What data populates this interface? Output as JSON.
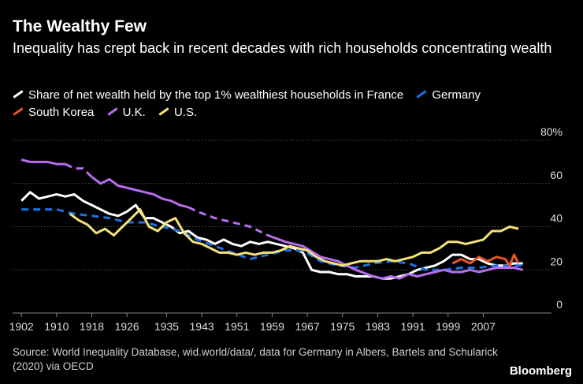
{
  "title": "The Wealthy Few",
  "subtitle": "Inequality has crept back in recent decades with rich households concentrating wealth",
  "source": "Source: World Inequality Database, wid.world/data/, data for Germany in Albers, Bartels and Schularick (2020) via OECD",
  "brand": "Bloomberg",
  "chart_data": {
    "type": "line",
    "title": "The Wealthy Few",
    "xlabel": "",
    "ylabel": "",
    "xlim": [
      1900,
      2020
    ],
    "ylim": [
      0,
      80
    ],
    "y_unit_suffix": "%",
    "grid": true,
    "legend_position": "top",
    "x_ticks": [
      1902,
      1910,
      1918,
      1926,
      1935,
      1943,
      1951,
      1959,
      1967,
      1975,
      1983,
      1991,
      1999,
      2007
    ],
    "y_ticks": [
      0,
      20,
      40,
      60,
      80
    ],
    "y_tick_labels": [
      "0",
      "20",
      "40",
      "60",
      "80%"
    ],
    "series": [
      {
        "name": "Share of net wealth held by the top 1% wealthiest households in France",
        "color": "#ffffff",
        "dash": "solid",
        "x": [
          1902,
          1904,
          1906,
          1908,
          1910,
          1912,
          1914,
          1916,
          1918,
          1920,
          1922,
          1924,
          1926,
          1928,
          1930,
          1932,
          1934,
          1936,
          1938,
          1940,
          1942,
          1944,
          1946,
          1948,
          1950,
          1952,
          1954,
          1956,
          1958,
          1960,
          1962,
          1964,
          1966,
          1968,
          1970,
          1972,
          1974,
          1976,
          1978,
          1980,
          1982,
          1984,
          1986,
          1988,
          1990,
          1992,
          1994,
          1996,
          1998,
          2000,
          2002,
          2004,
          2006,
          2008,
          2010,
          2012,
          2014,
          2016
        ],
        "values": [
          52,
          56,
          53,
          54,
          55,
          54,
          55,
          52,
          50,
          48,
          46,
          45,
          47,
          50,
          44,
          44,
          42,
          40,
          37,
          38,
          35,
          34,
          32,
          34,
          32,
          31,
          33,
          32,
          33,
          32,
          31,
          30,
          28,
          20,
          19,
          19,
          18,
          18,
          17,
          17,
          17,
          16,
          16,
          17,
          18,
          20,
          21,
          22,
          24,
          27,
          27,
          25,
          25,
          23,
          22,
          22,
          23,
          23
        ]
      },
      {
        "name": "Germany",
        "color": "#1f6fde",
        "dash": "dashed",
        "x": [
          1902,
          1906,
          1910,
          1914,
          1918,
          1922,
          1926,
          1930,
          1934,
          1938,
          1942,
          1946,
          1950,
          1954,
          1958,
          1962,
          1966,
          1970,
          1974,
          1978,
          1982,
          1986,
          1990,
          1994,
          1998,
          2002,
          2006,
          2010,
          2014,
          2016
        ],
        "values": [
          48,
          48,
          48,
          46,
          45,
          44,
          42,
          42,
          40,
          38,
          34,
          31,
          28,
          25,
          27,
          29,
          29,
          24,
          22,
          21,
          23,
          24,
          23,
          20,
          20,
          21,
          21,
          22,
          22,
          22
        ]
      },
      {
        "name": "South Korea",
        "color": "#e8542b",
        "dash": "solid",
        "x": [
          2000,
          2002,
          2004,
          2006,
          2008,
          2010,
          2012,
          2013,
          2014,
          2015
        ],
        "values": [
          23,
          25,
          23,
          26,
          24,
          26,
          25,
          22,
          27,
          23
        ]
      },
      {
        "name": "U.K.",
        "color": "#b86cf0",
        "dash": "mixed",
        "x": [
          1902,
          1904,
          1906,
          1908,
          1910,
          1912,
          1914,
          1916,
          1918,
          1920,
          1922,
          1924,
          1926,
          1928,
          1930,
          1932,
          1934,
          1936,
          1938,
          1940,
          1942,
          1946,
          1950,
          1954,
          1958,
          1962,
          1966,
          1970,
          1974,
          1978,
          1982,
          1984,
          1986,
          1988,
          1990,
          1992,
          1994,
          1996,
          1998,
          2000,
          2002,
          2004,
          2006,
          2008,
          2010,
          2012,
          2014,
          2016
        ],
        "values": [
          71,
          70,
          70,
          70,
          69,
          69,
          67,
          67,
          63,
          60,
          62,
          59,
          58,
          57,
          56,
          55,
          53,
          52,
          50,
          49,
          47,
          44,
          42,
          40,
          36,
          33,
          31,
          26,
          24,
          20,
          17,
          16,
          17,
          16,
          18,
          17,
          18,
          19,
          20,
          19,
          19,
          20,
          19,
          20,
          21,
          21,
          21,
          20
        ]
      },
      {
        "name": "U.S.",
        "color": "#f3e27a",
        "dash": "solid",
        "x": [
          1913,
          1915,
          1917,
          1919,
          1921,
          1923,
          1925,
          1927,
          1929,
          1931,
          1933,
          1935,
          1937,
          1939,
          1941,
          1943,
          1945,
          1947,
          1949,
          1951,
          1953,
          1955,
          1957,
          1959,
          1961,
          1963,
          1965,
          1967,
          1969,
          1971,
          1973,
          1975,
          1977,
          1979,
          1981,
          1983,
          1985,
          1987,
          1989,
          1991,
          1993,
          1995,
          1997,
          1999,
          2001,
          2003,
          2005,
          2007,
          2009,
          2011,
          2013,
          2015
        ],
        "values": [
          46,
          43,
          41,
          37,
          39,
          36,
          40,
          44,
          48,
          40,
          38,
          42,
          44,
          37,
          33,
          32,
          30,
          28,
          28,
          27,
          28,
          27,
          28,
          28,
          29,
          31,
          30,
          29,
          26,
          24,
          23,
          22,
          23,
          24,
          24,
          24,
          25,
          24,
          25,
          26,
          28,
          28,
          30,
          33,
          33,
          32,
          33,
          34,
          38,
          38,
          40,
          39
        ]
      }
    ]
  }
}
